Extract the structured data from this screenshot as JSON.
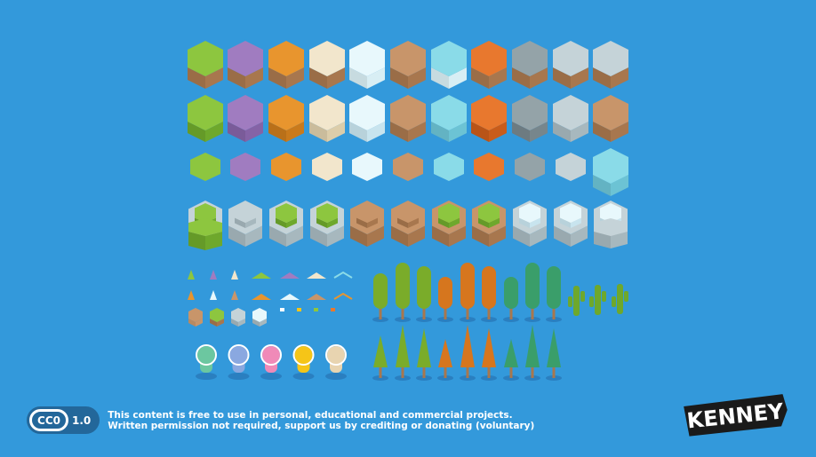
{
  "license": {
    "badge": "CC0",
    "version": "1.0",
    "line1": "This content is free to use in personal, educational and commercial projects.",
    "line2": "Written permission not required, support us by crediting or donating (voluntary)"
  },
  "logo": {
    "text": "KENNEY"
  },
  "colors": {
    "background": "#3399db",
    "terrains": [
      {
        "name": "grass",
        "top": "#8dc63f",
        "side": "#6ea82c"
      },
      {
        "name": "purple",
        "top": "#a07cc0",
        "side": "#8563a6"
      },
      {
        "name": "autumn",
        "top": "#e8952e",
        "side": "#c97a1c"
      },
      {
        "name": "sand",
        "top": "#f2e6cc",
        "side": "#dccdaa"
      },
      {
        "name": "snow",
        "top": "#e8f8fc",
        "side": "#c8e4ee"
      },
      {
        "name": "dirt",
        "top": "#c8956a",
        "side": "#a8774e"
      },
      {
        "name": "water",
        "top": "#8adbe8",
        "side": "#6cc3d4"
      },
      {
        "name": "lava",
        "top": "#e8782e",
        "side": "#c95c1a"
      },
      {
        "name": "stone",
        "top": "#94a3a8",
        "side": "#77868c"
      },
      {
        "name": "light-stone",
        "top": "#c5d3d8",
        "side": "#a7b8be"
      }
    ]
  }
}
